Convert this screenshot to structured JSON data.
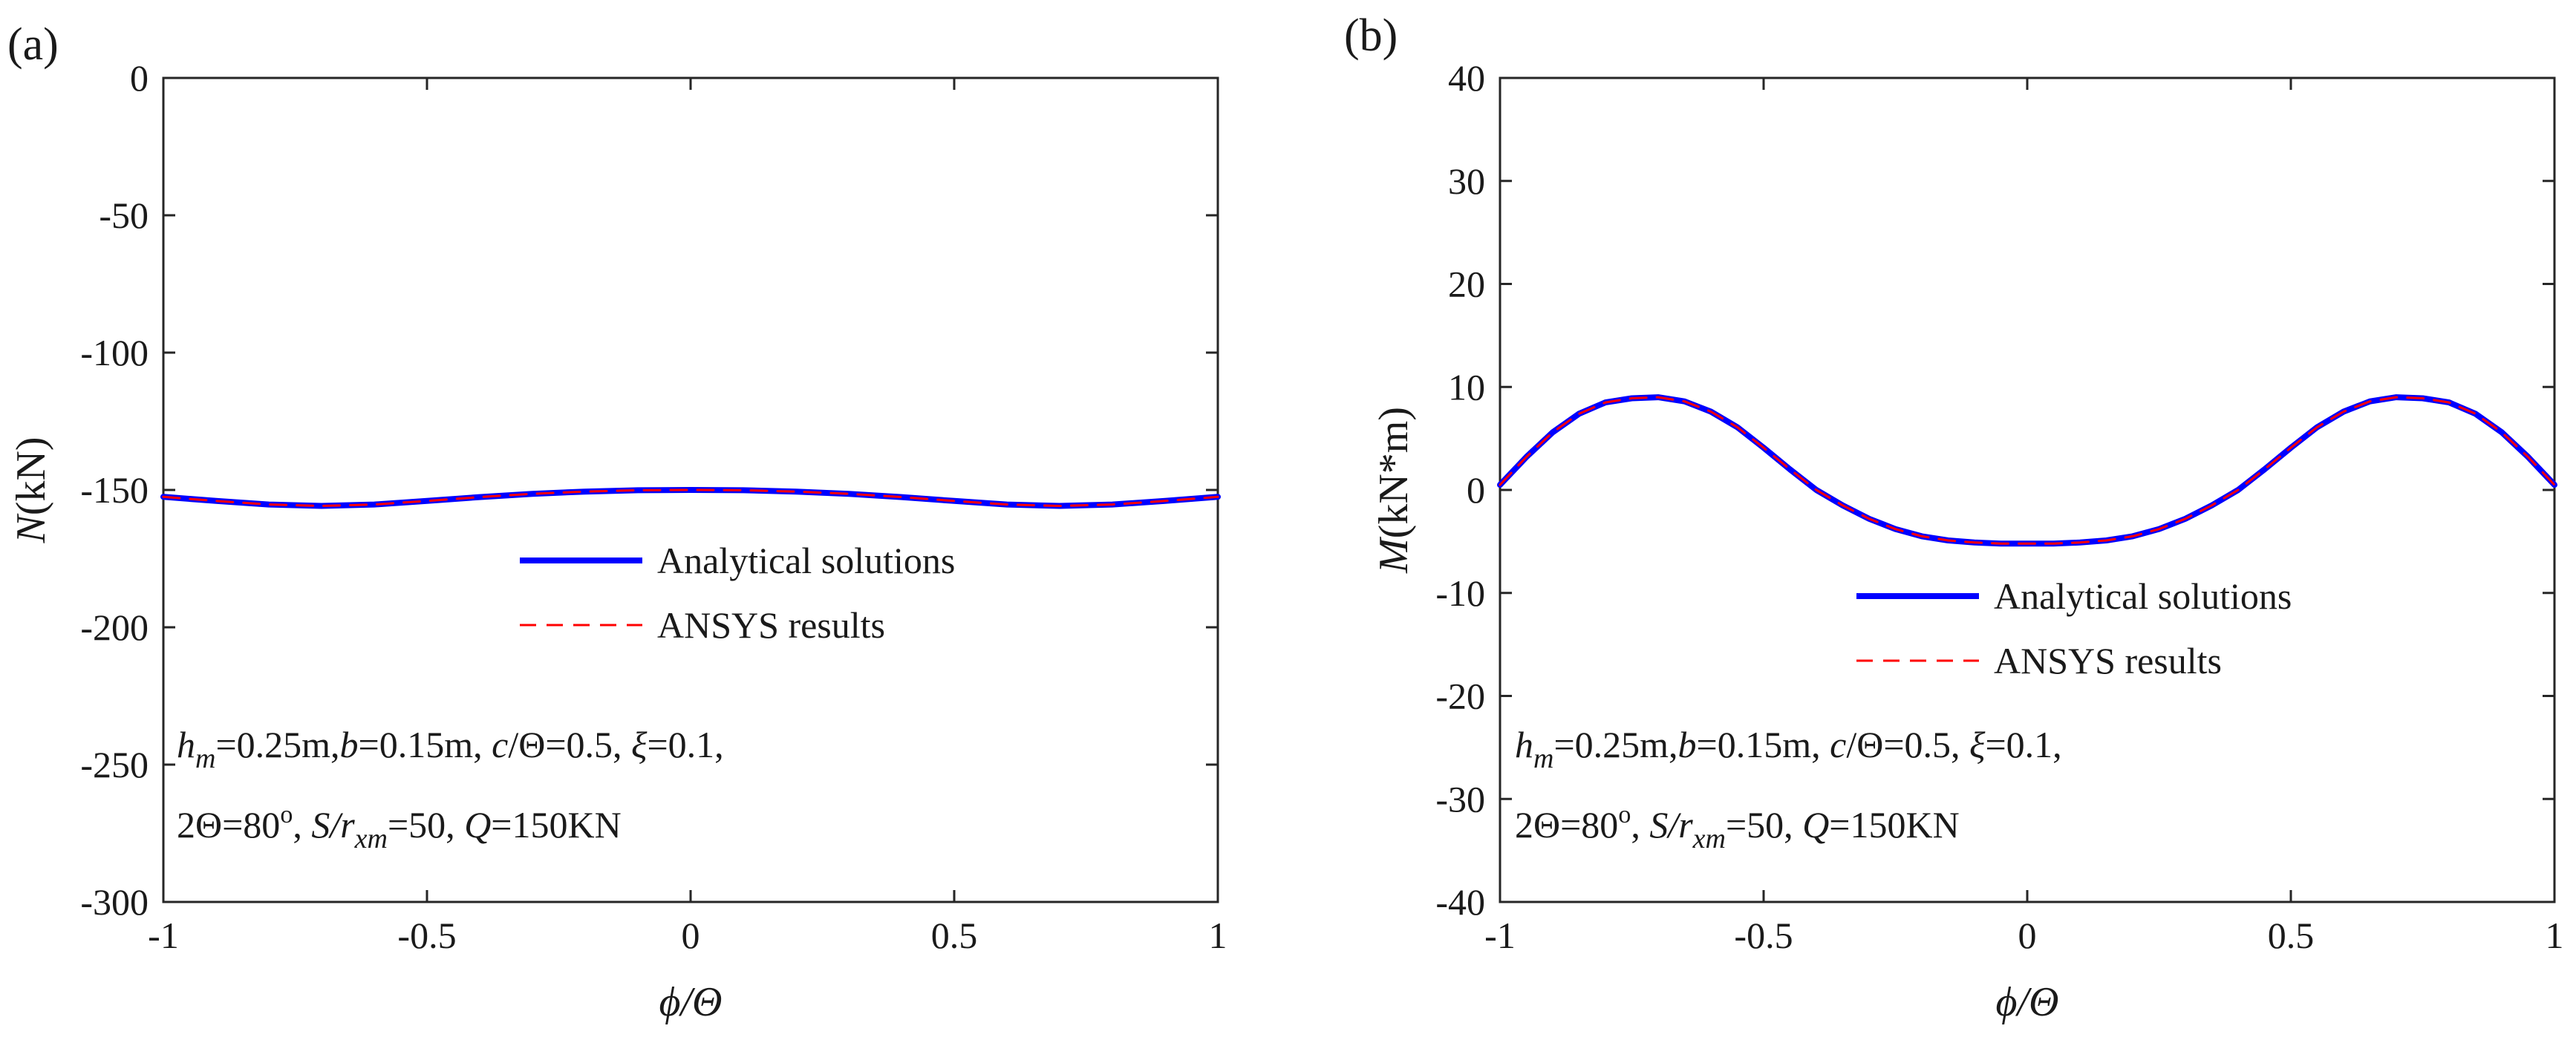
{
  "chart_data": [
    {
      "panel_label": "(a)",
      "type": "line",
      "xlabel": "ϕ/Θ",
      "ylabel_var": "N",
      "ylabel_unit": "(kN)",
      "xlim": [
        -1,
        1
      ],
      "ylim": [
        -300,
        0
      ],
      "xticks": [
        -1,
        -0.5,
        0,
        0.5,
        1
      ],
      "xtick_labels": [
        "-1",
        "-0.5",
        "0",
        "0.5",
        "1"
      ],
      "yticks": [
        0,
        -50,
        -100,
        -150,
        -200,
        -250,
        -300
      ],
      "ytick_labels": [
        "0",
        "-50",
        "-100",
        "-150",
        "-200",
        "-250",
        "-300"
      ],
      "grid": false,
      "x": [
        -1.0,
        -0.9,
        -0.8,
        -0.7,
        -0.6,
        -0.5,
        -0.4,
        -0.3,
        -0.2,
        -0.1,
        0.0,
        0.1,
        0.2,
        0.3,
        0.4,
        0.5,
        0.6,
        0.7,
        0.8,
        0.9,
        1.0
      ],
      "series": [
        {
          "name": "Analytical solutions",
          "color": "#0000ff",
          "style": "solid",
          "values": [
            -152.5,
            -154.0,
            -155.3,
            -155.8,
            -155.3,
            -154.0,
            -152.6,
            -151.4,
            -150.6,
            -150.1,
            -150.0,
            -150.1,
            -150.6,
            -151.4,
            -152.6,
            -154.0,
            -155.3,
            -155.8,
            -155.3,
            -154.0,
            -152.5
          ]
        },
        {
          "name": "ANSYS results",
          "color": "#ff0000",
          "style": "dashed",
          "values": [
            -152.5,
            -154.0,
            -155.3,
            -155.8,
            -155.3,
            -154.0,
            -152.6,
            -151.4,
            -150.6,
            -150.1,
            -150.0,
            -150.1,
            -150.6,
            -151.4,
            -152.6,
            -154.0,
            -155.3,
            -155.8,
            -155.3,
            -154.0,
            -152.5
          ]
        }
      ],
      "params": {
        "h_var": "h",
        "h_sub": "m",
        "h_val": "=0.25m,",
        "b_var": "b",
        "b_val": "=0.15m, ",
        "c_var": "c",
        "c_val": "/Θ=0.5, ",
        "xi_var": "ξ",
        "xi_val": "=0.1,",
        "theta_val": "2Θ=80",
        "theta_sup": "o",
        "sep1": ", ",
        "S_var": "S/r",
        "S_sub": "xm",
        "S_val": "=50, ",
        "Q_var": "Q",
        "Q_val": "=150KN"
      }
    },
    {
      "panel_label": "(b)",
      "type": "line",
      "xlabel": "ϕ/Θ",
      "ylabel_var": "M",
      "ylabel_unit": "(kN*m)",
      "xlim": [
        -1,
        1
      ],
      "ylim": [
        -40,
        40
      ],
      "xticks": [
        -1,
        -0.5,
        0,
        0.5,
        1
      ],
      "xtick_labels": [
        "-1",
        "-0.5",
        "0",
        "0.5",
        "1"
      ],
      "yticks": [
        40,
        30,
        20,
        10,
        0,
        -10,
        -20,
        -30,
        -40
      ],
      "ytick_labels": [
        "40",
        "30",
        "20",
        "10",
        "0",
        "-10",
        "-20",
        "-30",
        "-40"
      ],
      "grid": false,
      "x": [
        -1.0,
        -0.95,
        -0.9,
        -0.85,
        -0.8,
        -0.75,
        -0.7,
        -0.65,
        -0.6,
        -0.55,
        -0.5,
        -0.45,
        -0.4,
        -0.35,
        -0.3,
        -0.25,
        -0.2,
        -0.15,
        -0.1,
        -0.05,
        0.0,
        0.05,
        0.1,
        0.15,
        0.2,
        0.25,
        0.3,
        0.35,
        0.4,
        0.45,
        0.5,
        0.55,
        0.6,
        0.65,
        0.7,
        0.75,
        0.8,
        0.85,
        0.9,
        0.95,
        1.0
      ],
      "series": [
        {
          "name": "Analytical solutions",
          "color": "#0000ff",
          "style": "solid",
          "values": [
            0.5,
            3.2,
            5.6,
            7.4,
            8.5,
            8.9,
            9.0,
            8.6,
            7.6,
            6.1,
            4.1,
            2.0,
            0.0,
            -1.5,
            -2.8,
            -3.8,
            -4.5,
            -4.9,
            -5.1,
            -5.2,
            -5.2,
            -5.2,
            -5.1,
            -4.9,
            -4.5,
            -3.8,
            -2.8,
            -1.5,
            0.0,
            2.0,
            4.1,
            6.1,
            7.6,
            8.6,
            9.0,
            8.9,
            8.5,
            7.4,
            5.6,
            3.2,
            0.5
          ]
        },
        {
          "name": "ANSYS results",
          "color": "#ff0000",
          "style": "dashed",
          "values": [
            0.5,
            3.2,
            5.6,
            7.4,
            8.5,
            8.9,
            9.0,
            8.6,
            7.6,
            6.1,
            4.1,
            2.0,
            0.0,
            -1.5,
            -2.8,
            -3.8,
            -4.5,
            -4.9,
            -5.1,
            -5.2,
            -5.2,
            -5.2,
            -5.1,
            -4.9,
            -4.5,
            -3.8,
            -2.8,
            -1.5,
            0.0,
            2.0,
            4.1,
            6.1,
            7.6,
            8.6,
            9.0,
            8.9,
            8.5,
            7.4,
            5.6,
            3.2,
            0.5
          ]
        }
      ],
      "params": {
        "h_var": "h",
        "h_sub": "m",
        "h_val": "=0.25m,",
        "b_var": "b",
        "b_val": "=0.15m, ",
        "c_var": "c",
        "c_val": "/Θ=0.5, ",
        "xi_var": "ξ",
        "xi_val": "=0.1,",
        "theta_val": "2Θ=80",
        "theta_sup": "o",
        "sep1": ", ",
        "S_var": "S/r",
        "S_sub": "xm",
        "S_val": "=50, ",
        "Q_var": "Q",
        "Q_val": "=150KN"
      }
    }
  ]
}
